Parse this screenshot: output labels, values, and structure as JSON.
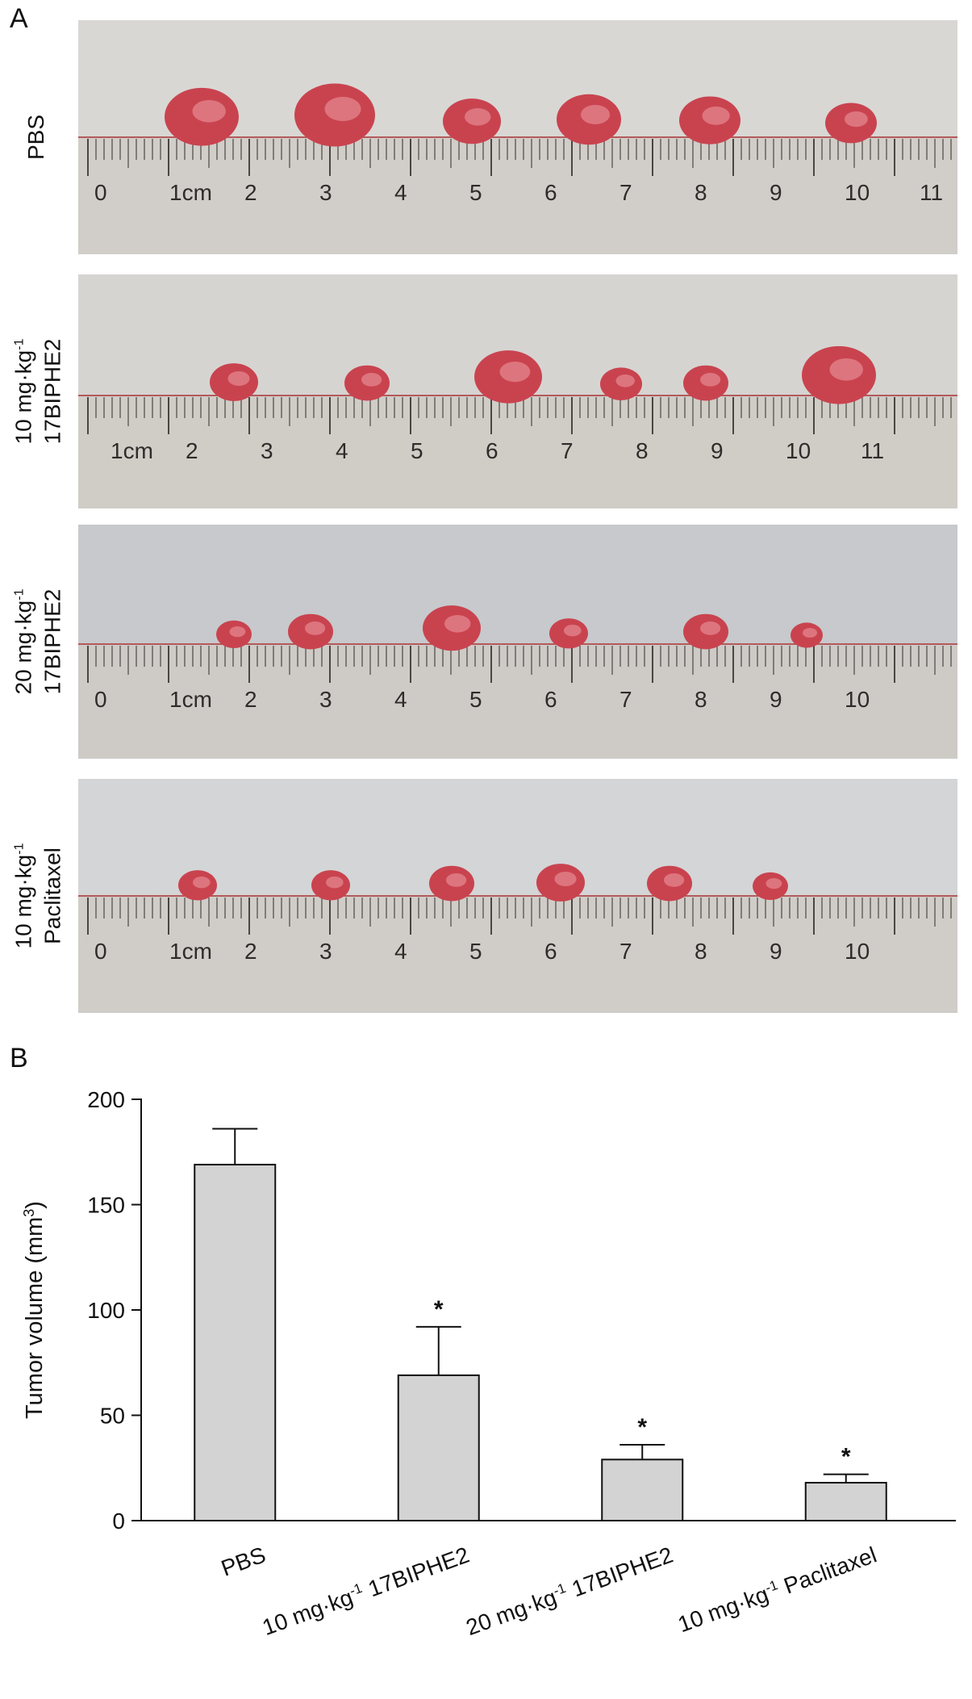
{
  "panel_a": {
    "letter": "A",
    "rows": [
      {
        "label_lines": [
          "PBS"
        ],
        "label_sup": [],
        "ruler_labels": [
          "0",
          "1cm",
          "2",
          "3",
          "4",
          "5",
          "6",
          "7",
          "8",
          "9",
          "10",
          "11"
        ],
        "bg": "#d9d7d4",
        "tumor_count": 6
      },
      {
        "label_lines": [
          "10 mg·kg",
          "17BIPHE2"
        ],
        "label_sup": [
          "-1"
        ],
        "ruler_labels": [
          "1cm",
          "2",
          "3",
          "4",
          "5",
          "6",
          "7",
          "8",
          "9",
          "10",
          "11"
        ],
        "bg": "#d6d4d1",
        "tumor_count": 6
      },
      {
        "label_lines": [
          "20 mg·kg",
          "17BIPHE2"
        ],
        "label_sup": [
          "-1"
        ],
        "ruler_labels": [
          "0",
          "1cm",
          "2",
          "3",
          "4",
          "5",
          "6",
          "7",
          "8",
          "9",
          "10"
        ],
        "bg": "#c7c9cc",
        "tumor_count": 6
      },
      {
        "label_lines": [
          "10 mg·kg",
          "Paclitaxel"
        ],
        "label_sup": [
          "-1"
        ],
        "ruler_labels": [
          "0",
          "1cm",
          "2",
          "3",
          "4",
          "5",
          "6",
          "7",
          "8",
          "9",
          "10"
        ],
        "bg": "#d4d5d6",
        "tumor_count": 6
      }
    ]
  },
  "panel_b": {
    "letter": "B"
  },
  "chart_data": {
    "type": "bar",
    "categories": [
      "PBS",
      "10 mg·kg-1 17BIPHE2",
      "20 mg·kg-1 17BIPHE2",
      "10 mg·kg-1 Paclitaxel"
    ],
    "category_main": [
      "PBS",
      "10 mg·kg",
      "20 mg·kg",
      "10 mg·kg"
    ],
    "category_sup": [
      "",
      "-1",
      "-1",
      "-1"
    ],
    "category_tail": [
      "",
      " 17BIPHE2",
      " 17BIPHE2",
      " Paclitaxel"
    ],
    "values": [
      169,
      69,
      29,
      18
    ],
    "error_upper": [
      17,
      23,
      7,
      4
    ],
    "significance": [
      "",
      "*",
      "*",
      "*"
    ],
    "ylabel": "Tumor volume (mm",
    "ylabel_sup": "3",
    "ylabel_end": ")",
    "ylim": [
      0,
      200
    ],
    "yticks": [
      0,
      50,
      100,
      150,
      200
    ],
    "bar_color": "#d3d3d3",
    "grid": false
  }
}
